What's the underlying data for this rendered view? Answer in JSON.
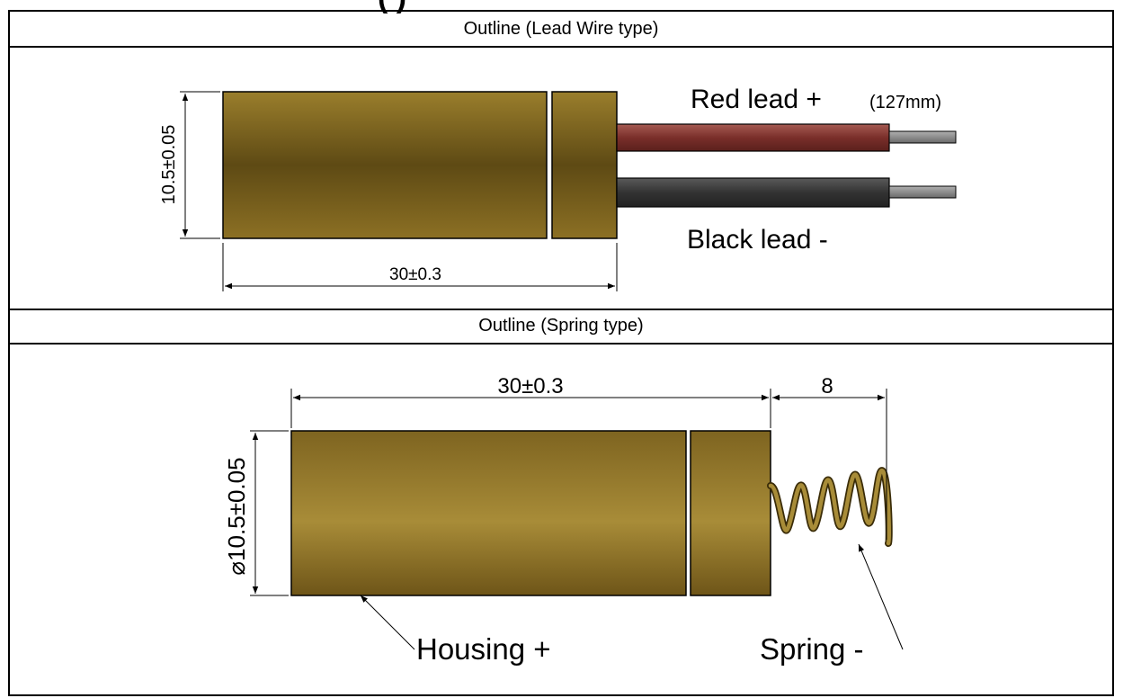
{
  "top_title_fragment": "(                    )",
  "lead_wire_section": {
    "title": "Outline (Lead Wire type)",
    "height_dim": "10.5±0.05",
    "length_dim": "30±0.3",
    "red_lead_label": "Red lead +",
    "lead_length_label": "(127mm)",
    "black_lead_label": "Black lead -"
  },
  "spring_section": {
    "title": "Outline (Spring type)",
    "length_dim": "30±0.3",
    "spring_dim": "8",
    "diameter_dim": "⌀10.5±0.05",
    "housing_label": "Housing +",
    "spring_label": "Spring -"
  },
  "colors": {
    "housing_light": "#a88c38",
    "housing_dark": "#5e4a14",
    "red_lead": "#8a3b36",
    "black_lead": "#3a3a3a",
    "wire_tip": "#8c8c8c"
  }
}
